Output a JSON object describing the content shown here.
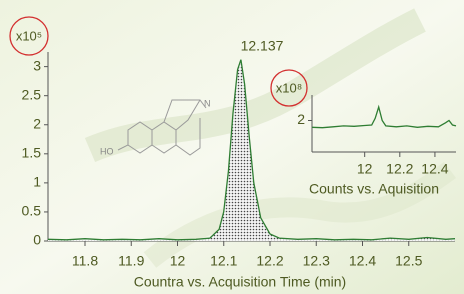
{
  "chart_data": [
    {
      "type": "line",
      "multiplier": "x10⁵",
      "annotation": "12.137",
      "xlabel": "Countra vs. Acquisition Time (min)",
      "x": [
        11.72,
        11.76,
        11.8,
        11.84,
        11.88,
        11.92,
        11.96,
        12.0,
        12.04,
        12.07,
        12.09,
        12.1,
        12.11,
        12.12,
        12.13,
        12.137,
        12.145,
        12.155,
        12.165,
        12.18,
        12.2,
        12.22,
        12.26,
        12.3,
        12.34,
        12.38,
        12.42,
        12.46,
        12.5,
        12.54,
        12.58,
        12.6
      ],
      "series": [
        {
          "color": "#2e7d32",
          "values": [
            0.03,
            0.02,
            0.04,
            0.02,
            0.03,
            0.02,
            0.04,
            0.02,
            0.03,
            0.05,
            0.2,
            0.5,
            1.2,
            2.2,
            2.95,
            3.12,
            2.7,
            1.8,
            1.0,
            0.4,
            0.12,
            0.05,
            0.03,
            0.04,
            0.02,
            0.03,
            0.02,
            0.05,
            0.03,
            0.06,
            0.03,
            0.04
          ]
        }
      ],
      "xlim": [
        11.72,
        12.6
      ],
      "xticks": [
        11.8,
        11.9,
        12,
        12.1,
        12.2,
        12.3,
        12.4,
        12.5
      ],
      "ylim": [
        0,
        3.2
      ],
      "yticks": [
        0,
        0.5,
        1,
        1.5,
        2,
        2.5,
        3
      ],
      "fill_peak": true
    },
    {
      "type": "line",
      "multiplier": "x10⁸",
      "xlabel": "Counts vs. Aquisition",
      "x": [
        11.7,
        11.76,
        11.82,
        11.88,
        11.94,
        12.0,
        12.04,
        12.06,
        12.08,
        12.1,
        12.12,
        12.18,
        12.24,
        12.3,
        12.36,
        12.42,
        12.46,
        12.48,
        12.5,
        12.52
      ],
      "series": [
        {
          "color": "#2e7d32",
          "values": [
            1.85,
            1.84,
            1.86,
            1.88,
            1.87,
            1.89,
            1.9,
            2.05,
            2.3,
            2.0,
            1.88,
            1.86,
            1.88,
            1.85,
            1.87,
            1.86,
            1.95,
            2.0,
            1.9,
            1.88
          ]
        }
      ],
      "xlim": [
        11.7,
        12.52
      ],
      "xticks": [
        12,
        12.2,
        12.4
      ],
      "ylim": [
        1.3,
        2.5
      ],
      "yticks": [
        2
      ],
      "fill_peak": false
    }
  ],
  "structure": {
    "labels": [
      "HO",
      "N"
    ]
  }
}
